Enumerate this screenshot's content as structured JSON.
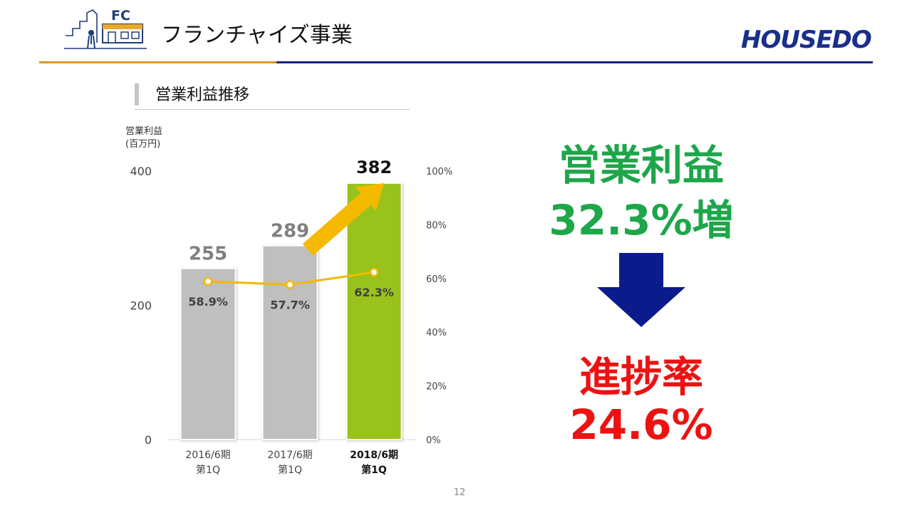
{
  "header": {
    "title": "フランチャイズ事業",
    "fc_label": "FC",
    "brand": "HOUSEDO"
  },
  "section": {
    "title": "営業利益推移"
  },
  "chart_data": {
    "type": "bar",
    "ylabel_line1": "営業利益",
    "ylabel_line2": "(百万円)",
    "categories": [
      {
        "line1": "2016/6期",
        "line2": "第1Q"
      },
      {
        "line1": "2017/6期",
        "line2": "第1Q"
      },
      {
        "line1": "2018/6期",
        "line2": "第1Q"
      }
    ],
    "values": [
      255,
      289,
      382
    ],
    "value_labels": [
      "255",
      "289",
      "382"
    ],
    "ratios": [
      58.9,
      57.7,
      62.3
    ],
    "ratio_labels": [
      "58.9%",
      "57.7%",
      "62.3%"
    ],
    "ylim": [
      0,
      400
    ],
    "yticks": [
      0,
      200,
      400
    ],
    "y2lim": [
      0,
      100
    ],
    "y2ticks": [
      "0%",
      "20%",
      "40%",
      "60%",
      "80%",
      "100%"
    ],
    "highlight_index": 2,
    "colors": {
      "bar_default": "#bfbfbf",
      "bar_highlight": "#99c21c",
      "line": "#f5b900",
      "arrow": "#f5b900"
    }
  },
  "highlights": {
    "metric": "営業利益",
    "growth": "32.3%増",
    "progress_label": "進捗率",
    "progress_value": "24.6%",
    "colors": {
      "growth": "#1ea64a",
      "progress": "#ee1111",
      "arrow": "#0b1b8c"
    }
  },
  "footer": {
    "page_number": "12"
  }
}
